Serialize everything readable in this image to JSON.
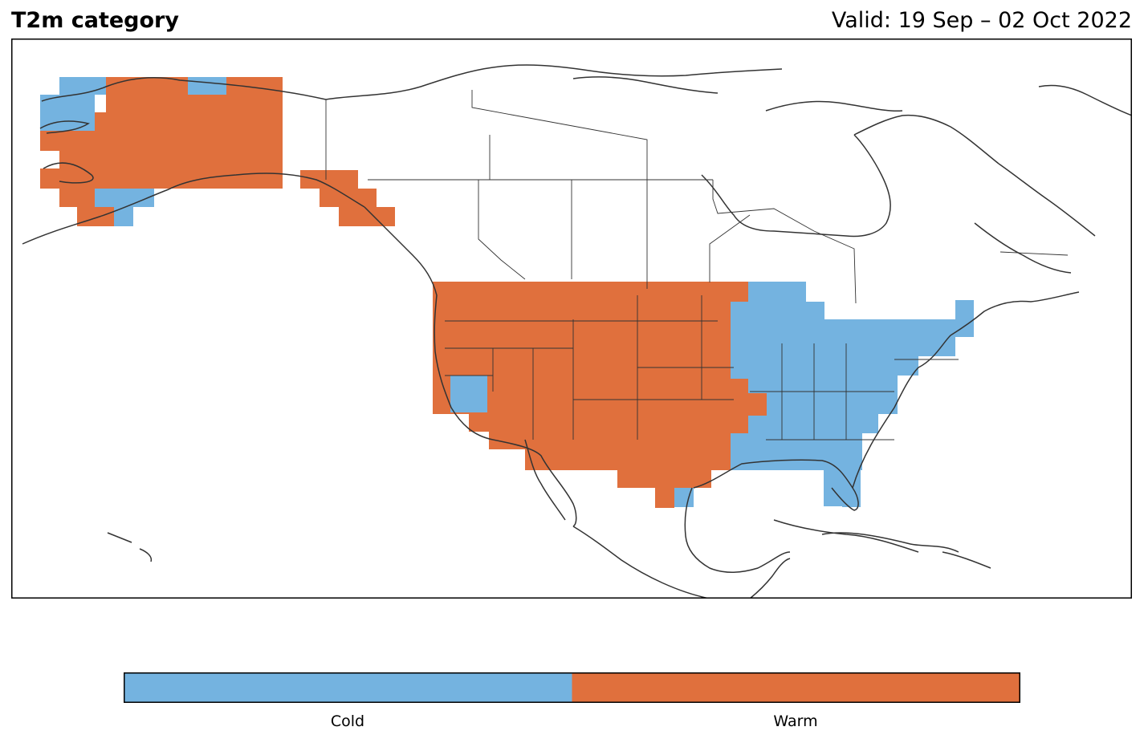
{
  "header": {
    "title": "T2m category",
    "valid": "Valid: 19 Sep – 02 Oct 2022"
  },
  "legend": {
    "categories": [
      {
        "label": "Cold",
        "color": "#74b3e0"
      },
      {
        "label": "Warm",
        "color": "#e0703d"
      }
    ]
  },
  "colors": {
    "cold": "#74b3e0",
    "warm": "#e0703d",
    "coastline": "#333333"
  }
}
